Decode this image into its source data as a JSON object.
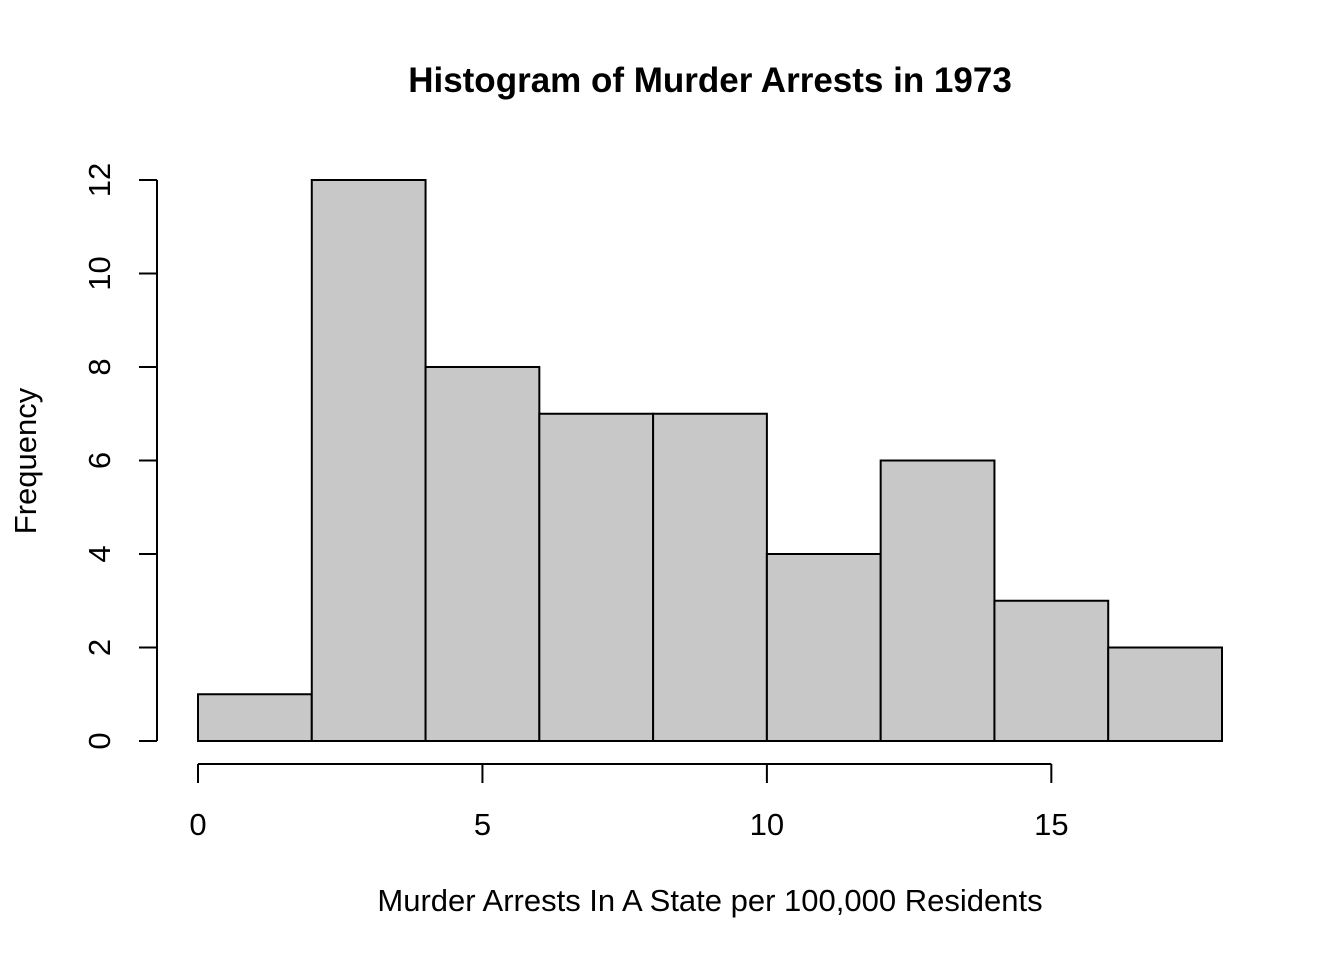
{
  "chart_data": {
    "type": "bar",
    "title": "Histogram of Murder Arrests in 1973",
    "xlabel": "Murder Arrests In A State per 100,000 Residents",
    "ylabel": "Frequency",
    "bins": [
      {
        "start": 0,
        "end": 2,
        "count": 1
      },
      {
        "start": 2,
        "end": 4,
        "count": 12
      },
      {
        "start": 4,
        "end": 6,
        "count": 8
      },
      {
        "start": 6,
        "end": 8,
        "count": 7
      },
      {
        "start": 8,
        "end": 10,
        "count": 7
      },
      {
        "start": 10,
        "end": 12,
        "count": 4
      },
      {
        "start": 12,
        "end": 14,
        "count": 6
      },
      {
        "start": 14,
        "end": 16,
        "count": 3
      },
      {
        "start": 16,
        "end": 18,
        "count": 2
      }
    ],
    "xticks": [
      0,
      5,
      10,
      15
    ],
    "yticks": [
      0,
      2,
      4,
      6,
      8,
      10,
      12
    ],
    "xlim": [
      0,
      18
    ],
    "ylim": [
      0,
      12
    ],
    "grid": false,
    "bar_color": "#c8c8c8"
  }
}
